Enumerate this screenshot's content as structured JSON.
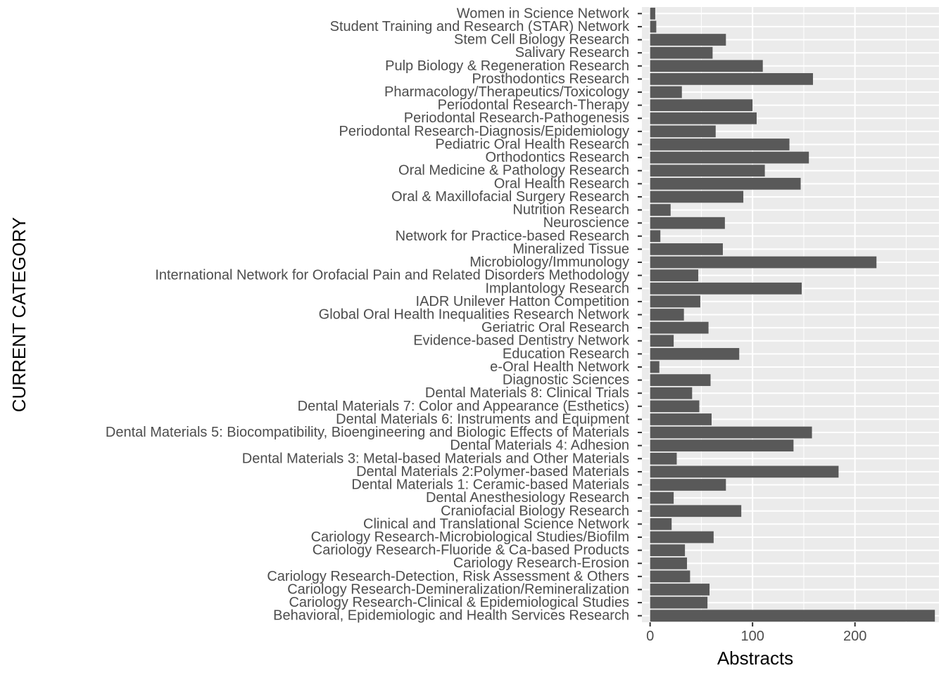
{
  "chart_data": {
    "type": "bar",
    "orientation": "horizontal",
    "xlabel": "Abstracts",
    "ylabel": "CURRENT CATEGORY",
    "xlim": [
      -8,
      282
    ],
    "xticks": [
      0,
      100,
      200
    ],
    "grid": true,
    "bar_color": "#595959",
    "panel_color": "#ebebeb",
    "grid_color": "#ffffff",
    "categories": [
      "Women in Science Network",
      "Student Training and Research (STAR) Network",
      "Stem Cell Biology Research",
      "Salivary Research",
      "Pulp Biology & Regeneration Research",
      "Prosthodontics Research",
      "Pharmacology/Therapeutics/Toxicology",
      "Periodontal Research-Therapy",
      "Periodontal Research-Pathogenesis",
      "Periodontal Research-Diagnosis/Epidemiology",
      "Pediatric Oral Health Research",
      "Orthodontics Research",
      "Oral Medicine & Pathology Research",
      "Oral Health Research",
      "Oral & Maxillofacial Surgery Research",
      "Nutrition Research",
      "Neuroscience",
      "Network for Practice-based Research",
      "Mineralized Tissue",
      "Microbiology/Immunology",
      "International Network for Orofacial Pain and Related Disorders Methodology",
      "Implantology Research",
      "IADR Unilever Hatton Competition",
      "Global Oral Health Inequalities Research Network",
      "Geriatric Oral Research",
      "Evidence-based Dentistry Network",
      "Education Research",
      "e-Oral Health Network",
      "Diagnostic Sciences",
      "Dental Materials 8: Clinical Trials",
      "Dental Materials 7: Color and Appearance (Esthetics)",
      "Dental Materials 6: Instruments and Equipment",
      "Dental Materials 5: Biocompatibility, Bioengineering and Biologic Effects of Materials",
      "Dental Materials 4: Adhesion",
      "Dental Materials 3: Metal-based Materials and Other Materials",
      "Dental Materials 2:Polymer-based Materials",
      "Dental Materials 1: Ceramic-based Materials",
      "Dental Anesthesiology Research",
      "Craniofacial Biology Research",
      "Clinical and Translational Science Network",
      "Cariology Research-Microbiological Studies/Biofilm",
      "Cariology Research-Fluoride & Ca-based Products",
      "Cariology Research-Erosion",
      "Cariology Research-Detection, Risk Assessment & Others",
      "Cariology Research-Demineralization/Remineralization",
      "Cariology Research-Clinical & Epidemiological Studies",
      "Behavioral, Epidemiologic and Health Services Research"
    ],
    "values": [
      5,
      6,
      74,
      61,
      110,
      159,
      31,
      100,
      104,
      64,
      136,
      155,
      112,
      147,
      91,
      20,
      73,
      10,
      71,
      221,
      47,
      148,
      49,
      33,
      57,
      23,
      87,
      9,
      59,
      41,
      48,
      60,
      158,
      140,
      26,
      184,
      74,
      23,
      89,
      21,
      62,
      34,
      36,
      39,
      58,
      56,
      278
    ]
  }
}
